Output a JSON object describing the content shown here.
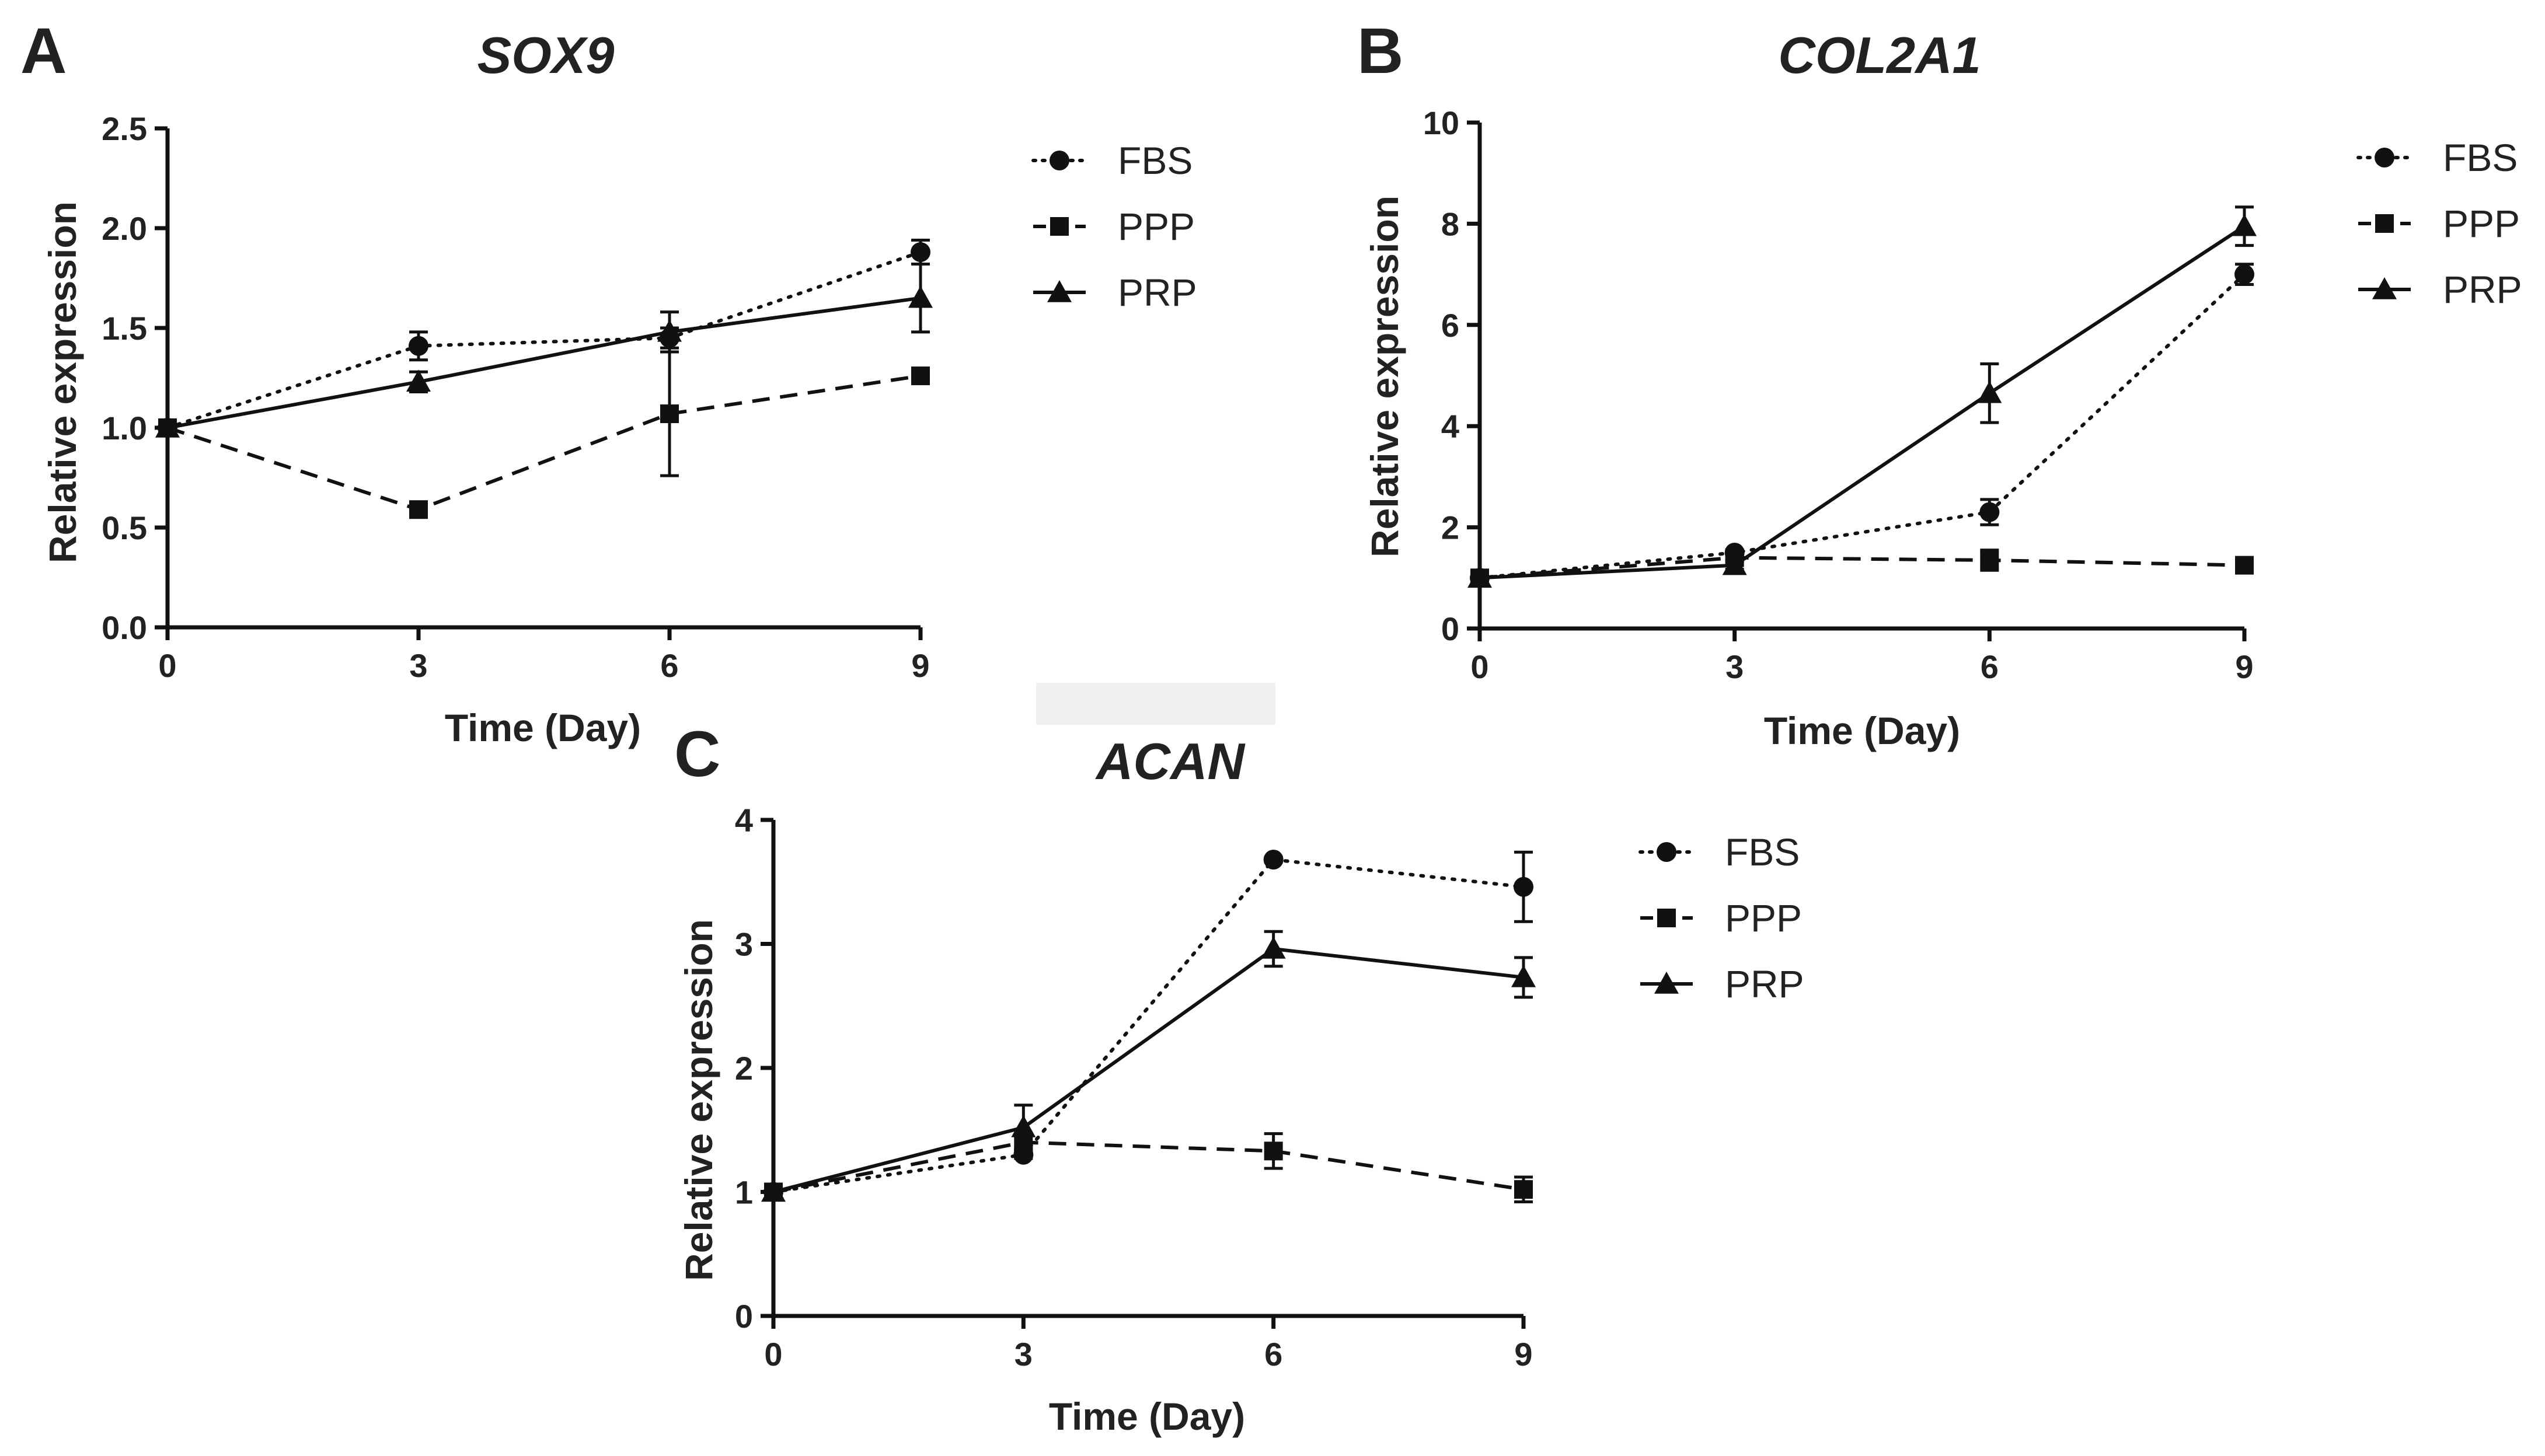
{
  "chart_data": [
    {
      "panel": "A",
      "type": "line",
      "title": "SOX9",
      "xlabel": "Time (Day)",
      "ylabel": "Relative expression",
      "x": [
        0,
        3,
        6,
        9
      ],
      "xticks": [
        "0",
        "3",
        "6",
        "9"
      ],
      "ylim": [
        0,
        2.5
      ],
      "yticks": [
        "0.0",
        "0.5",
        "1.0",
        "1.5",
        "2.0",
        "2.5"
      ],
      "legend_position": "right",
      "series": [
        {
          "name": "FBS",
          "style": "dotted",
          "marker": "circle",
          "values": [
            1.0,
            1.41,
            1.45,
            1.88
          ],
          "errors": [
            0,
            0.07,
            0.05,
            0.06
          ]
        },
        {
          "name": "PPP",
          "style": "dashed",
          "marker": "square",
          "values": [
            1.0,
            0.59,
            1.07,
            1.26
          ],
          "errors": [
            0,
            0.02,
            0.31,
            0.02
          ]
        },
        {
          "name": "PRP",
          "style": "solid",
          "marker": "triangle",
          "values": [
            1.0,
            1.23,
            1.48,
            1.65
          ],
          "errors": [
            0,
            0.05,
            0.1,
            0.17
          ]
        }
      ]
    },
    {
      "panel": "B",
      "type": "line",
      "title": "COL2A1",
      "xlabel": "Time (Day)",
      "ylabel": "Relative expression",
      "x": [
        0,
        3,
        6,
        9
      ],
      "xticks": [
        "0",
        "3",
        "6",
        "9"
      ],
      "ylim": [
        0,
        10
      ],
      "yticks": [
        "0",
        "2",
        "4",
        "6",
        "8",
        "10"
      ],
      "legend_position": "right",
      "series": [
        {
          "name": "FBS",
          "style": "dotted",
          "marker": "circle",
          "values": [
            1.0,
            1.5,
            2.3,
            7.0
          ],
          "errors": [
            0,
            0.05,
            0.25,
            0.2
          ]
        },
        {
          "name": "PPP",
          "style": "dashed",
          "marker": "square",
          "values": [
            1.0,
            1.4,
            1.35,
            1.25
          ],
          "errors": [
            0,
            0.05,
            0.2,
            0.05
          ]
        },
        {
          "name": "PRP",
          "style": "solid",
          "marker": "triangle",
          "values": [
            1.0,
            1.25,
            4.65,
            7.95
          ],
          "errors": [
            0,
            0.08,
            0.58,
            0.38
          ]
        }
      ]
    },
    {
      "panel": "C",
      "type": "line",
      "title": "ACAN",
      "xlabel": "Time (Day)",
      "ylabel": "Relative expression",
      "x": [
        0,
        3,
        6,
        9
      ],
      "xticks": [
        "0",
        "3",
        "6",
        "9"
      ],
      "ylim": [
        0,
        4
      ],
      "yticks": [
        "0",
        "1",
        "2",
        "3",
        "4"
      ],
      "legend_position": "right",
      "series": [
        {
          "name": "FBS",
          "style": "dotted",
          "marker": "circle",
          "values": [
            1.0,
            1.3,
            3.68,
            3.46
          ],
          "errors": [
            0,
            0.03,
            0.02,
            0.28
          ]
        },
        {
          "name": "PPP",
          "style": "dashed",
          "marker": "square",
          "values": [
            1.0,
            1.4,
            1.33,
            1.02
          ],
          "errors": [
            0,
            0.05,
            0.14,
            0.1
          ]
        },
        {
          "name": "PRP",
          "style": "solid",
          "marker": "triangle",
          "values": [
            1.0,
            1.52,
            2.96,
            2.73
          ],
          "errors": [
            0,
            0.18,
            0.14,
            0.16
          ]
        }
      ]
    }
  ]
}
